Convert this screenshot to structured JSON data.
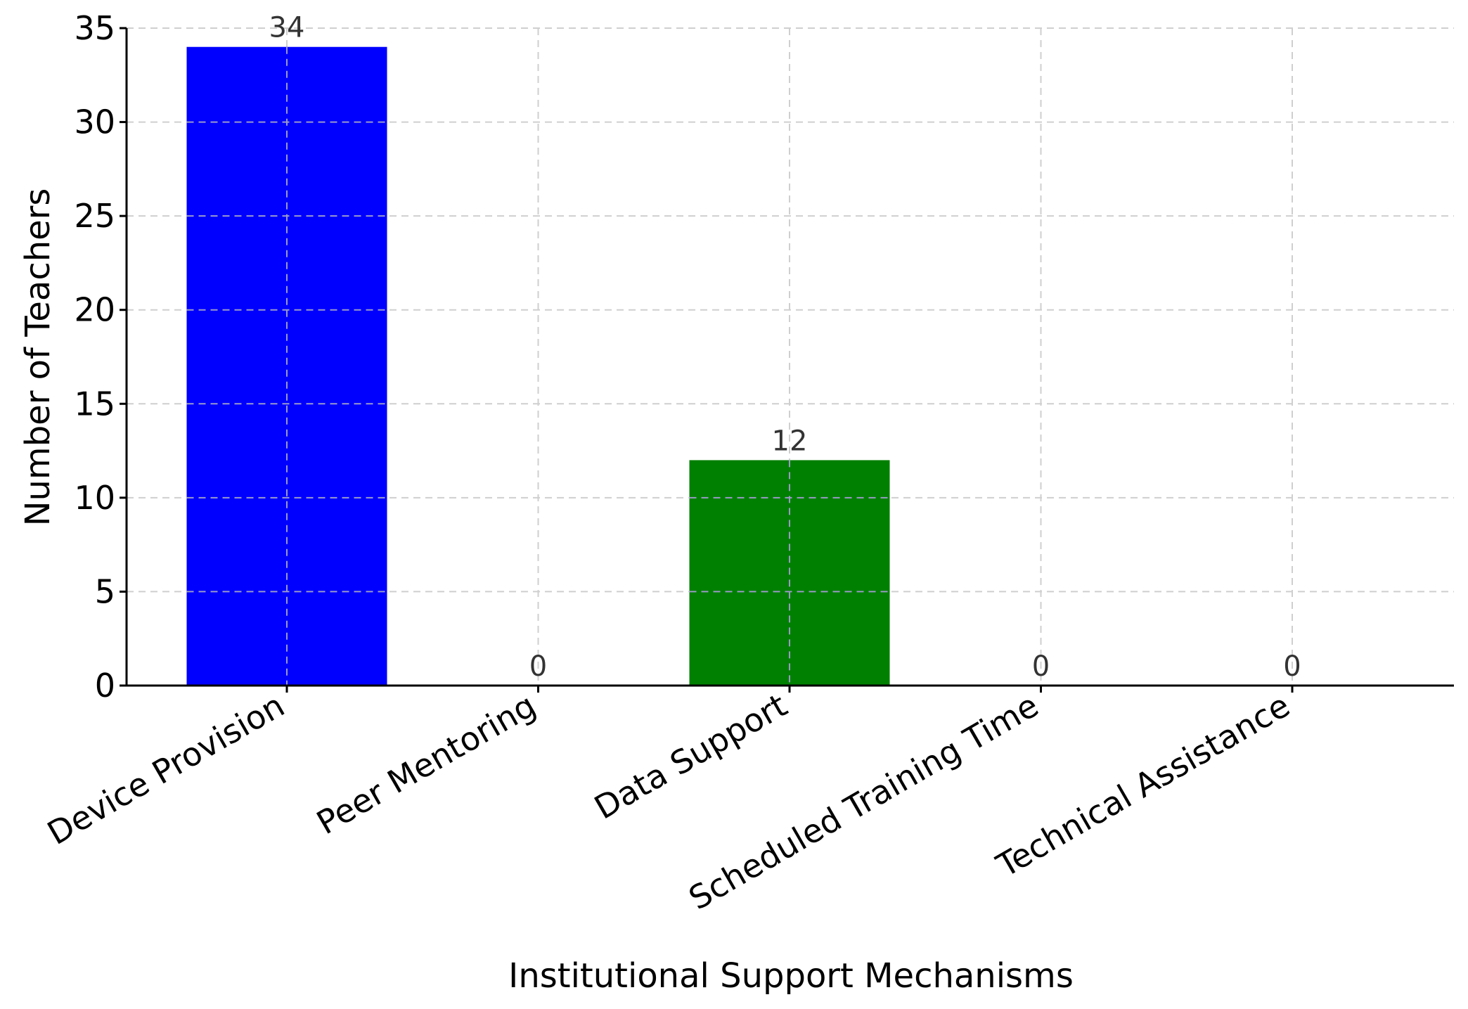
{
  "chart_data": {
    "type": "bar",
    "title": "",
    "xlabel": "Institutional Support Mechanisms",
    "ylabel": "Number of Teachers",
    "categories": [
      "Device Provision",
      "Peer Mentoring",
      "Data Support",
      "Scheduled Training Time",
      "Technical Assistance"
    ],
    "values": [
      34,
      0,
      12,
      0,
      0
    ],
    "data_labels": [
      "34",
      "0",
      "12",
      "0",
      "0"
    ],
    "colors": [
      "#0000ff",
      "#0000ff",
      "#008000",
      "#008000",
      "#008000"
    ],
    "ylim": [
      0,
      35
    ],
    "yticks": [
      0,
      5,
      10,
      15,
      20,
      25,
      30,
      35
    ],
    "ytick_labels": [
      "0",
      "5",
      "10",
      "15",
      "20",
      "25",
      "30",
      "35"
    ],
    "grid": true,
    "legend": "none"
  }
}
